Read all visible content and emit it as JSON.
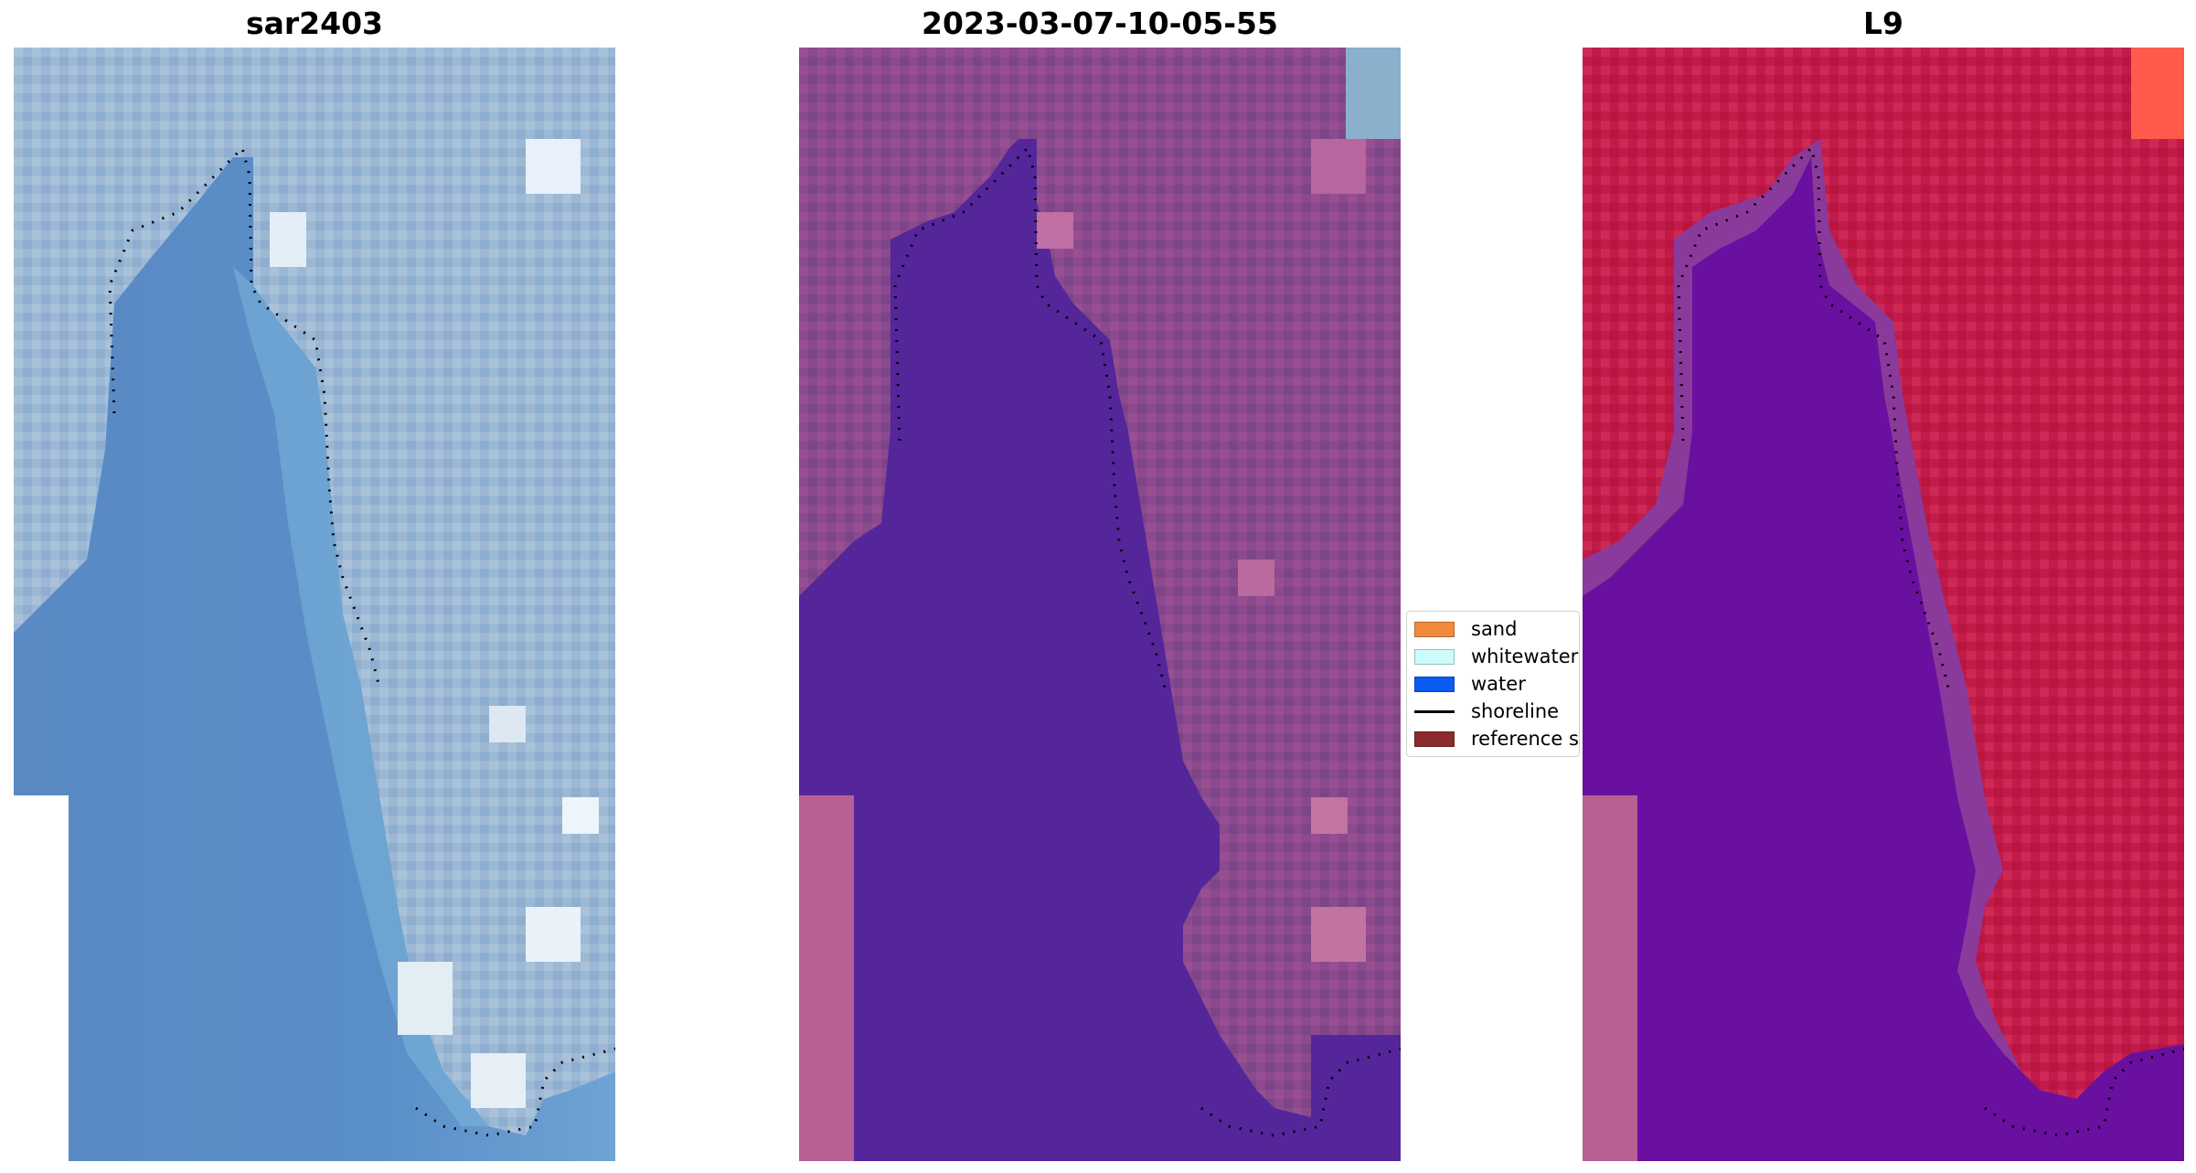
{
  "panels": [
    {
      "title": "sar2403"
    },
    {
      "title": "2023-03-07-10-05-55"
    },
    {
      "title": "L9"
    }
  ],
  "legend": {
    "items": [
      {
        "label": "sand",
        "color": "#f28a3c",
        "kind": "patch"
      },
      {
        "label": "whitewater",
        "color": "#ccfcfc",
        "kind": "patch"
      },
      {
        "label": "water",
        "color": "#0a5cf0",
        "kind": "patch"
      },
      {
        "label": "shoreline",
        "color": "#000000",
        "kind": "line"
      },
      {
        "label": "reference shoreline",
        "color": "#8b2b2b",
        "kind": "patch"
      }
    ]
  },
  "colors": {
    "rgb_water": "#5b8dc7",
    "rgb_land": "#9bb6d2",
    "class_water": "#54269a",
    "class_land": "#8b4b8e",
    "class_nodata": "#b85f93",
    "ndwi_water": "#6a10a0",
    "ndwi_land": "#c41a4a",
    "ndwi_nodata": "#b85f93"
  }
}
